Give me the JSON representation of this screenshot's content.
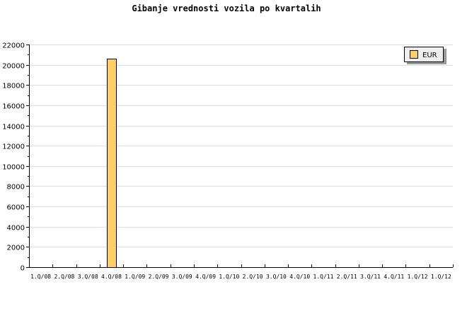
{
  "chart_data": {
    "type": "bar",
    "title": "Gibanje vrednosti vozila po kvartalih",
    "xlabel": "",
    "ylabel": "",
    "categories": [
      "1.Q/08",
      "2.Q/08",
      "3.Q/08",
      "4.Q/08",
      "1.Q/09",
      "2.Q/09",
      "3.Q/09",
      "4.Q/09",
      "1.Q/10",
      "2.Q/10",
      "3.Q/10",
      "4.Q/10",
      "1.Q/11",
      "2.Q/11",
      "3.Q/11",
      "4.Q/11",
      "1.Q/12",
      "1.Q/12"
    ],
    "series": [
      {
        "name": "EUR",
        "color": "#ffcc66",
        "values": [
          null,
          null,
          null,
          20600,
          null,
          null,
          null,
          null,
          null,
          null,
          null,
          null,
          null,
          null,
          null,
          null,
          null,
          null
        ]
      }
    ],
    "ylim": [
      0,
      22000
    ],
    "yticks": [
      0,
      2000,
      4000,
      6000,
      8000,
      10000,
      12000,
      14000,
      16000,
      18000,
      20000,
      22000
    ],
    "grid": true,
    "legend": "top-right"
  }
}
